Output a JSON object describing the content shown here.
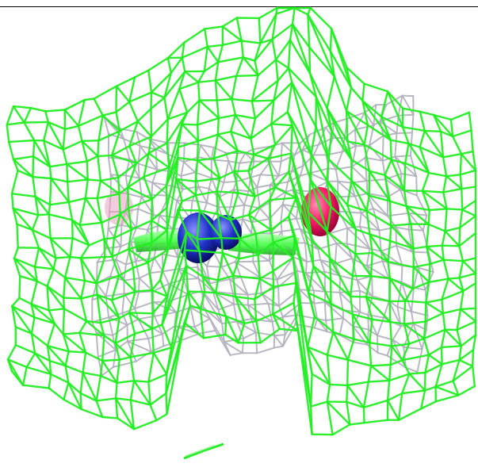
{
  "scene": {
    "background": "#ffffff",
    "outer_mesh_color": "#22ee22",
    "inner_mesh_color": "#b0b0bc",
    "stick_color": "#44ff44",
    "atom_nitrogen_color": "#2233cc",
    "atom_oxygen_color": "#ff1a66",
    "atom_faint_color": "#e8a0c0"
  }
}
